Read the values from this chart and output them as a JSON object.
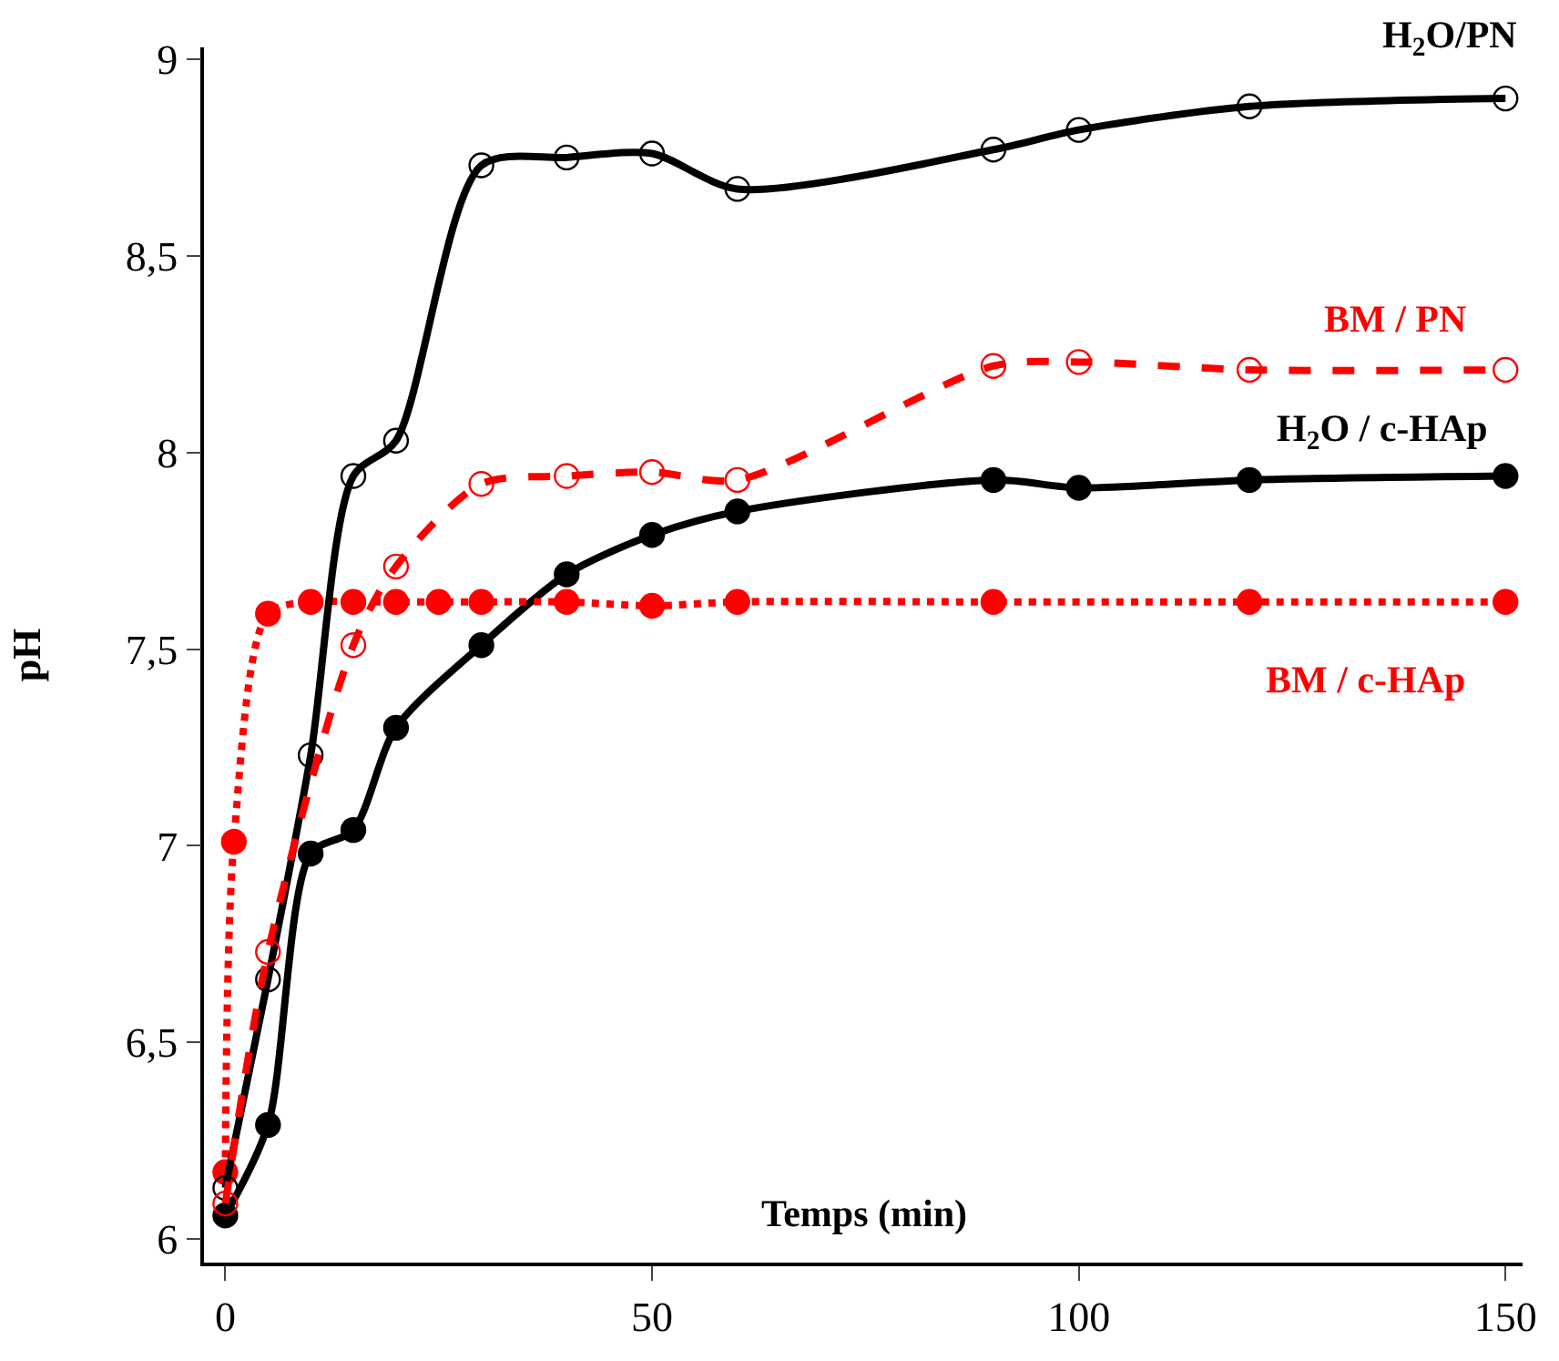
{
  "chart_data": {
    "type": "line",
    "xlabel": "Temps (min)",
    "ylabel": "pH",
    "xlim": [
      -2.5,
      152
    ],
    "xticks": [
      0,
      50,
      100,
      150
    ],
    "ylim": [
      5.94,
      9.03
    ],
    "yticks": [
      6,
      {
        "value": 6.5,
        "label": "6,5"
      },
      7,
      {
        "value": 7.5,
        "label": "7,5"
      },
      8,
      {
        "value": 8.5,
        "label": "8,5"
      },
      9
    ],
    "series": [
      {
        "name": "H$_{2}$O/PN",
        "color": "#000000",
        "marker": "circle-open",
        "line_style": "solid",
        "x": [
          0,
          5,
          10,
          15,
          20,
          30,
          40,
          50,
          60,
          90,
          100,
          120,
          150
        ],
        "values": [
          6.13,
          6.66,
          7.23,
          7.94,
          8.03,
          8.73,
          8.75,
          8.76,
          8.67,
          8.77,
          8.82,
          8.88,
          8.9
        ]
      },
      {
        "name": "BM / PN",
        "color": "#ff0000",
        "marker": "circle-open",
        "line_style": "dashed",
        "x": [
          0,
          5,
          15,
          20,
          30,
          40,
          50,
          60,
          90,
          100,
          120,
          150
        ],
        "values": [
          6.09,
          6.73,
          7.51,
          7.71,
          7.92,
          7.94,
          7.95,
          7.93,
          8.22,
          8.23,
          8.21,
          8.21
        ]
      },
      {
        "name": "H$_{2}$O / c-HAp",
        "color": "#000000",
        "marker": "circle",
        "line_style": "solid",
        "x": [
          0,
          5,
          10,
          15,
          20,
          30,
          40,
          50,
          60,
          90,
          100,
          120,
          150
        ],
        "values": [
          6.06,
          6.29,
          6.98,
          7.04,
          7.3,
          7.51,
          7.69,
          7.79,
          7.85,
          7.93,
          7.91,
          7.93,
          7.94
        ]
      },
      {
        "name": "BM / c-HAp",
        "color": "#ff0000",
        "marker": "circle",
        "line_style": "dotted",
        "x": [
          0,
          1,
          5,
          10,
          15,
          20,
          25,
          30,
          40,
          50,
          60,
          90,
          120,
          150
        ],
        "values": [
          6.17,
          7.01,
          7.59,
          7.62,
          7.62,
          7.62,
          7.62,
          7.62,
          7.62,
          7.61,
          7.62,
          7.62,
          7.62,
          7.62
        ]
      }
    ]
  }
}
